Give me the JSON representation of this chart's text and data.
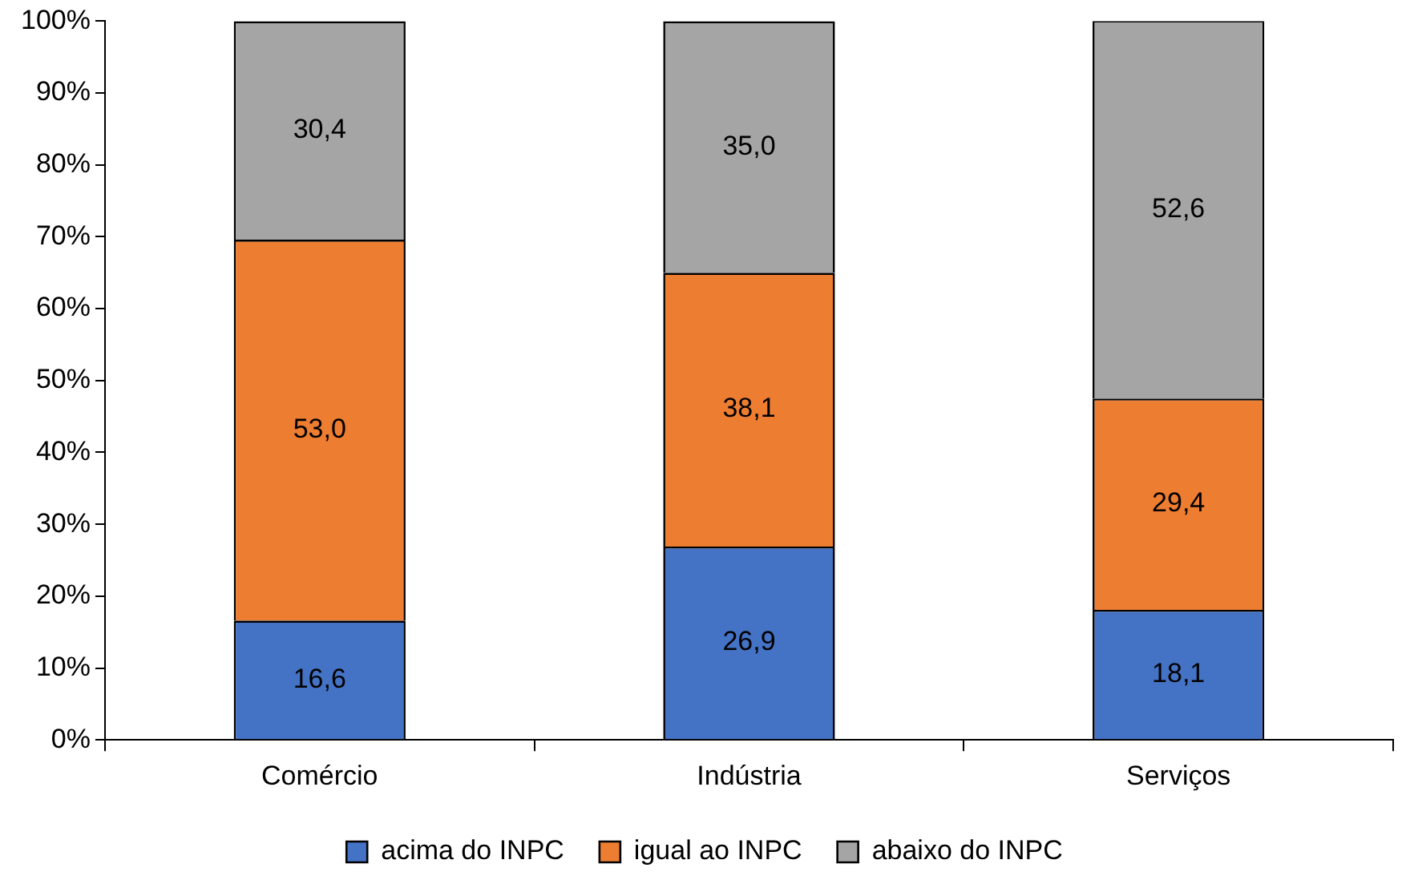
{
  "chart_data": {
    "type": "bar",
    "stacked": true,
    "categories": [
      "Comércio",
      "Indústria",
      "Serviços"
    ],
    "series": [
      {
        "name": "acima do INPC",
        "color": "#4472c4",
        "values": [
          16.6,
          26.9,
          18.1
        ],
        "value_labels": [
          "16,6",
          "26,9",
          "18,1"
        ]
      },
      {
        "name": "igual ao INPC",
        "color": "#ed7d31",
        "values": [
          53.0,
          38.1,
          29.4
        ],
        "value_labels": [
          "53,0",
          "38,1",
          "29,4"
        ]
      },
      {
        "name": "abaixo do INPC",
        "color": "#a5a5a5",
        "values": [
          30.4,
          35.0,
          52.6
        ],
        "value_labels": [
          "30,4",
          "35,0",
          "52,6"
        ]
      }
    ],
    "ylim": [
      0,
      100
    ],
    "yticks": [
      {
        "value": 0,
        "label": "0%"
      },
      {
        "value": 10,
        "label": "10%"
      },
      {
        "value": 20,
        "label": "20%"
      },
      {
        "value": 30,
        "label": "30%"
      },
      {
        "value": 40,
        "label": "40%"
      },
      {
        "value": 50,
        "label": "50%"
      },
      {
        "value": 60,
        "label": "60%"
      },
      {
        "value": 70,
        "label": "70%"
      },
      {
        "value": 80,
        "label": "80%"
      },
      {
        "value": 90,
        "label": "90%"
      },
      {
        "value": 100,
        "label": "100%"
      }
    ],
    "grid": false,
    "legend": "bottom"
  }
}
